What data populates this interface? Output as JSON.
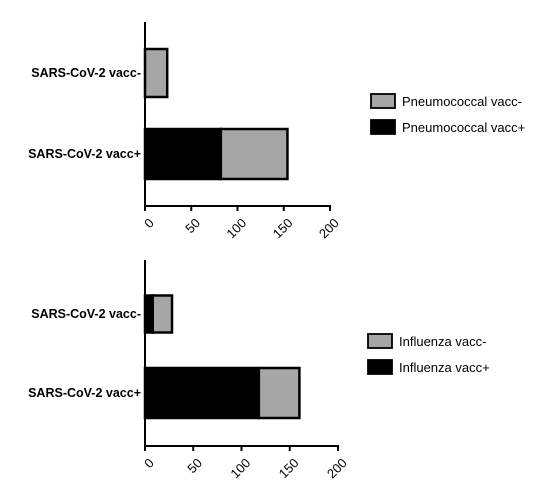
{
  "colors": {
    "vacc_minus": "#a6a6a6",
    "vacc_plus": "#000000",
    "stroke": "#000000"
  },
  "chart_data": [
    {
      "type": "bar",
      "orientation": "horizontal",
      "stacked": true,
      "categories": [
        "SARS-CoV-2 vacc-",
        "SARS-CoV-2 vacc+"
      ],
      "series": [
        {
          "name": "Pneumococcal vacc+",
          "values": [
            0,
            82
          ]
        },
        {
          "name": "Pneumococcal vacc-",
          "values": [
            24,
            72
          ]
        }
      ],
      "xlim": [
        0,
        200
      ],
      "xticks": [
        0,
        50,
        100,
        150,
        200
      ],
      "legend_position": "right",
      "legend_order": [
        "Pneumococcal vacc-",
        "Pneumococcal vacc+"
      ]
    },
    {
      "type": "bar",
      "orientation": "horizontal",
      "stacked": true,
      "categories": [
        "SARS-CoV-2 vacc-",
        "SARS-CoV-2 vacc+"
      ],
      "series": [
        {
          "name": "Influenza vacc+",
          "values": [
            8,
            118
          ]
        },
        {
          "name": "Influenza vacc-",
          "values": [
            20,
            42
          ]
        }
      ],
      "xlim": [
        0,
        200
      ],
      "xticks": [
        0,
        50,
        100,
        150,
        200
      ],
      "legend_position": "right",
      "legend_order": [
        "Influenza vacc-",
        "Influenza vacc+"
      ]
    }
  ]
}
